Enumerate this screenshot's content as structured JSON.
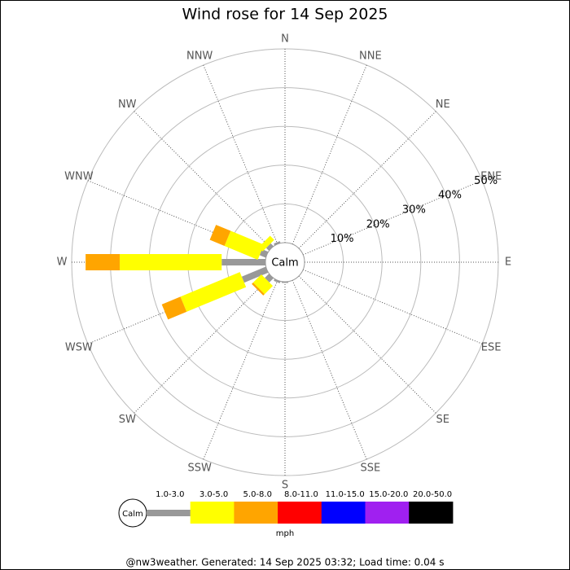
{
  "chart_data": {
    "type": "windrose",
    "title": "Wind rose for 14 Sep 2025",
    "categories": [
      "N",
      "NNE",
      "NE",
      "ENE",
      "E",
      "ESE",
      "SE",
      "SSE",
      "S",
      "SSW",
      "SW",
      "WSW",
      "W",
      "WNW",
      "NW",
      "NNW"
    ],
    "rlim": [
      0,
      50
    ],
    "rticks": [
      {
        "value": 10,
        "label": "10%"
      },
      {
        "value": 20,
        "label": "20%"
      },
      {
        "value": 30,
        "label": "30%"
      },
      {
        "value": 40,
        "label": "40%"
      },
      {
        "value": 50,
        "label": "50%"
      }
    ],
    "calm_label": "Calm",
    "unit": "mph",
    "series": [
      {
        "name": "1.0-3.0",
        "color": "#999999",
        "values": [
          0,
          0,
          0,
          0,
          0,
          0,
          0,
          0,
          0.3,
          0.5,
          1.5,
          6.7,
          11.3,
          1.7,
          1.0,
          0.5
        ]
      },
      {
        "name": "3.0-5.0",
        "color": "#ffff00",
        "values": [
          0,
          0,
          0,
          0,
          0,
          0,
          0,
          0,
          0,
          0,
          3,
          16.6,
          26.3,
          9.3,
          1.5,
          0
        ]
      },
      {
        "name": "5.0-8.0",
        "color": "#ffa500",
        "values": [
          0,
          0,
          0,
          0,
          0,
          0,
          0,
          0,
          0,
          0,
          0.5,
          5.2,
          8.8,
          4.1,
          0,
          0
        ]
      },
      {
        "name": "8.0-11.0",
        "color": "#ff0000",
        "values": [
          0,
          0,
          0,
          0,
          0,
          0,
          0,
          0,
          0,
          0,
          0,
          0,
          0,
          0,
          0,
          0
        ]
      },
      {
        "name": "11.0-15.0",
        "color": "#0000ff",
        "values": [
          0,
          0,
          0,
          0,
          0,
          0,
          0,
          0,
          0,
          0,
          0,
          0,
          0,
          0,
          0,
          0
        ]
      },
      {
        "name": "15.0-20.0",
        "color": "#a020f0",
        "values": [
          0,
          0,
          0,
          0,
          0,
          0,
          0,
          0,
          0,
          0,
          0,
          0,
          0,
          0,
          0,
          0
        ]
      },
      {
        "name": "20.0-50.0",
        "color": "#000000",
        "values": [
          0,
          0,
          0,
          0,
          0,
          0,
          0,
          0,
          0,
          0,
          0,
          0,
          0,
          0,
          0,
          0
        ]
      }
    ],
    "footer": "@nw3weather. Generated: 14 Sep 2025 03:32; Load time: 0.04 s"
  }
}
